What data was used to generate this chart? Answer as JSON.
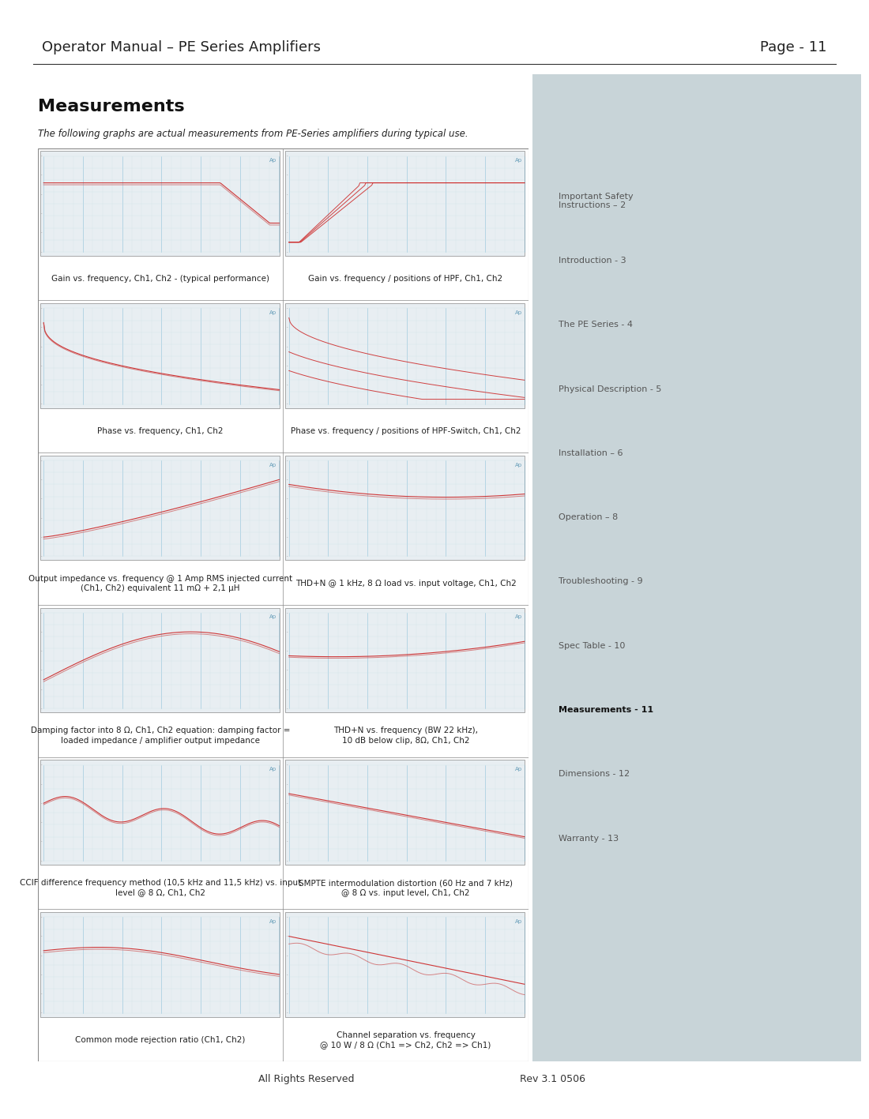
{
  "page_title_left": "Operator Manual – PE Series Amplifiers",
  "page_title_right": "Page - 11",
  "section_title": "Measurements",
  "intro_text": "The following graphs are actual measurements from PE-Series amplifiers during typical use.",
  "footer_left": "All Rights Reserved",
  "footer_right": "Rev 3.1 0506",
  "sidebar_items": [
    "Important Safety\nInstructions – 2",
    "Introduction - 3",
    "The PE Series - 4",
    "Physical Description - 5",
    "Installation – 6",
    "Operation – 8",
    "Troubleshooting - 9",
    "Spec Table - 10",
    "Measurements - 11",
    "Dimensions - 12",
    "Warranty - 13"
  ],
  "sidebar_bold": "Measurements - 11",
  "graph_captions": [
    [
      "Gain vs. frequency, Ch1, Ch2 - (typical performance)",
      "Gain vs. frequency / positions of HPF, Ch1, Ch2"
    ],
    [
      "Phase vs. frequency, Ch1, Ch2",
      "Phase vs. frequency / positions of HPF-Switch, Ch1, Ch2"
    ],
    [
      "Output impedance vs. frequency @ 1 Amp RMS injected current\n(Ch1, Ch2) equivalent 11 mΩ + 2,1 μH",
      "THD+N @ 1 kHz, 8 Ω load vs. input voltage, Ch1, Ch2"
    ],
    [
      "Damping factor into 8 Ω, Ch1, Ch2 equation: damping factor =\nloaded impedance / amplifier output impedance",
      "THD+N vs. frequency (BW 22 kHz),\n10 dB below clip, 8Ω, Ch1, Ch2"
    ],
    [
      "CCIF difference frequency method (10,5 kHz and 11,5 kHz) vs. input\nlevel @ 8 Ω, Ch1, Ch2",
      "SMPTE intermodulation distortion (60 Hz and 7 kHz)\n@ 8 Ω vs. input level, Ch1, Ch2"
    ],
    [
      "Common mode rejection ratio (Ch1, Ch2)",
      "Channel separation vs. frequency\n@ 10 W / 8 Ω (Ch1 => Ch2, Ch2 => Ch1)"
    ]
  ],
  "bg_color": "#ffffff",
  "sidebar_bg": "#c8d4d8",
  "graph_bg": "#e8eef2",
  "graph_grid_color_v": "#6ab0d0",
  "graph_grid_color_h": "#c8e0e8",
  "graph_line_color1": "#cc2222",
  "graph_line_color2": "#bb3333",
  "ap_watermark": "Ap",
  "header_line_color": "#333333",
  "title_font_size": 13,
  "header_font_size": 9,
  "caption_font_size": 7.5,
  "sidebar_font_size": 8
}
